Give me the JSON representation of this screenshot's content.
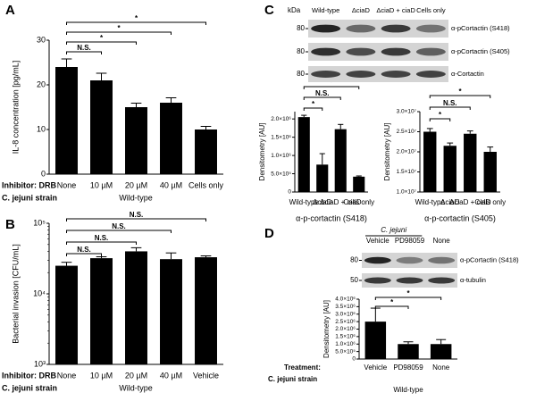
{
  "panels": [
    "A",
    "B",
    "C",
    "D"
  ],
  "chart_data": [
    {
      "type": "bar",
      "ylabel": "IL-8 concentration [pg/mL]",
      "categories": [
        "None",
        "10 µM",
        "20 µM",
        "40 µM",
        "Cells only"
      ],
      "values": [
        24,
        21,
        15,
        16,
        10
      ],
      "errors": [
        1.8,
        1.6,
        0.9,
        1.1,
        0.7
      ],
      "ylim": [
        0,
        30
      ],
      "yticks": [
        0,
        10,
        20,
        30
      ],
      "annotations": [
        "N.S.",
        "*",
        "*",
        "*"
      ],
      "row_labels": [
        "Inhibitor: DRB",
        "C. jejuni strain"
      ],
      "group_label": "Wild-type",
      "color": "#000000"
    },
    {
      "type": "bar",
      "ylabel": "Bacterial invasion [CFU/mL]",
      "log_scale": true,
      "categories": [
        "None",
        "10 µM",
        "20 µM",
        "40 µM",
        "Vehicle"
      ],
      "values": [
        25000,
        32000,
        40000,
        31000,
        33000
      ],
      "errors": [
        3000,
        1500,
        5000,
        7000,
        1500
      ],
      "ylim": [
        1000,
        100000
      ],
      "yticks": [
        {
          "value": 1000,
          "label": "10³"
        },
        {
          "value": 10000,
          "label": "10⁴"
        },
        {
          "value": 100000,
          "label": "10⁵"
        }
      ],
      "annotations": [
        "N.S.",
        "N.S.",
        "N.S.",
        "N.S."
      ],
      "row_labels": [
        "Inhibitor: DRB",
        "C. jejuni strain"
      ],
      "group_label": "Wild-type",
      "color": "#000000"
    },
    {
      "type": "bar",
      "ylabel": "Densitometry [AU]",
      "xlabel": "α-p-cortactin (S418)",
      "categories": [
        "Wild-type",
        "ΔciaD",
        "ΔciaD + ciaD",
        "Cells only"
      ],
      "values": [
        2050000,
        750000,
        1720000,
        420000
      ],
      "errors": [
        50000,
        300000,
        130000,
        20000
      ],
      "ylim": [
        0,
        2200000
      ],
      "yticks": [
        0,
        {
          "value": 500000,
          "label": "5.0×10⁵"
        },
        {
          "value": 1000000,
          "label": "1.0×10⁶"
        },
        {
          "value": 1500000,
          "label": "1.5×10⁶"
        },
        {
          "value": 2000000,
          "label": "2.0×10⁶"
        }
      ],
      "annotations": [
        "*",
        "N.S.",
        "*"
      ],
      "color": "#000000"
    },
    {
      "type": "bar",
      "ylabel": "Densitometry [AU]",
      "xlabel": "α-p-cortactin (S405)",
      "categories": [
        "Wild-type",
        "ΔciaD",
        "ΔciaD + ciaD",
        "Cells only"
      ],
      "values": [
        25000000,
        21500000,
        24500000,
        20000000
      ],
      "errors": [
        800000,
        700000,
        700000,
        1200000
      ],
      "ylim": [
        10000000,
        30000000
      ],
      "yticks": [
        {
          "value": 10000000,
          "label": "1.0×10⁷"
        },
        {
          "value": 15000000,
          "label": "1.5×10⁷"
        },
        {
          "value": 20000000,
          "label": "2.0×10⁷"
        },
        {
          "value": 25000000,
          "label": "2.5×10⁷"
        },
        {
          "value": 30000000,
          "label": "3.0×10⁷"
        }
      ],
      "annotations": [
        "*",
        "N.S.",
        "*"
      ],
      "color": "#000000"
    },
    {
      "type": "bar",
      "ylabel": "Densitometry [AU]",
      "categories": [
        "Vehicle",
        "PD98059",
        "None"
      ],
      "values": [
        2500000,
        1000000,
        1000000
      ],
      "errors": [
        900000,
        150000,
        300000
      ],
      "ylim": [
        0,
        4000000
      ],
      "yticks": [
        0,
        {
          "value": 500000,
          "label": "5.0×10⁵"
        },
        {
          "value": 1000000,
          "label": "1.0×10⁶"
        },
        {
          "value": 1500000,
          "label": "1.5×10⁶"
        },
        {
          "value": 2000000,
          "label": "2.0×10⁶"
        },
        {
          "value": 2500000,
          "label": "2.5×10⁶"
        },
        {
          "value": 3000000,
          "label": "3.0×10⁶"
        },
        {
          "value": 3500000,
          "label": "3.5×10⁶"
        },
        {
          "value": 4000000,
          "label": "4.0×10⁶"
        }
      ],
      "annotations": [
        "*",
        "*"
      ],
      "row_labels": [
        "Treatment:",
        "C. jejuni strain"
      ],
      "group_label": "Wild-type",
      "color": "#000000"
    }
  ],
  "blots": [
    {
      "kda_header": "kDa",
      "columns": [
        "Wild-type",
        "ΔciaD",
        "ΔciaD + ciaD",
        "Cells only"
      ],
      "rows": [
        {
          "kda": "80",
          "label": "α-pCortactin (S418)"
        },
        {
          "kda": "80",
          "label": "α-pCortactin (S405)"
        },
        {
          "kda": "80",
          "label": "α-Cortactin"
        }
      ]
    },
    {
      "group": "C. jejuni",
      "columns": [
        "Vehicle",
        "PD98059",
        "None"
      ],
      "rows": [
        {
          "kda": "80",
          "label": "α-pCortactin (S418)"
        },
        {
          "kda": "50",
          "label": "α-tubulin"
        }
      ]
    }
  ]
}
